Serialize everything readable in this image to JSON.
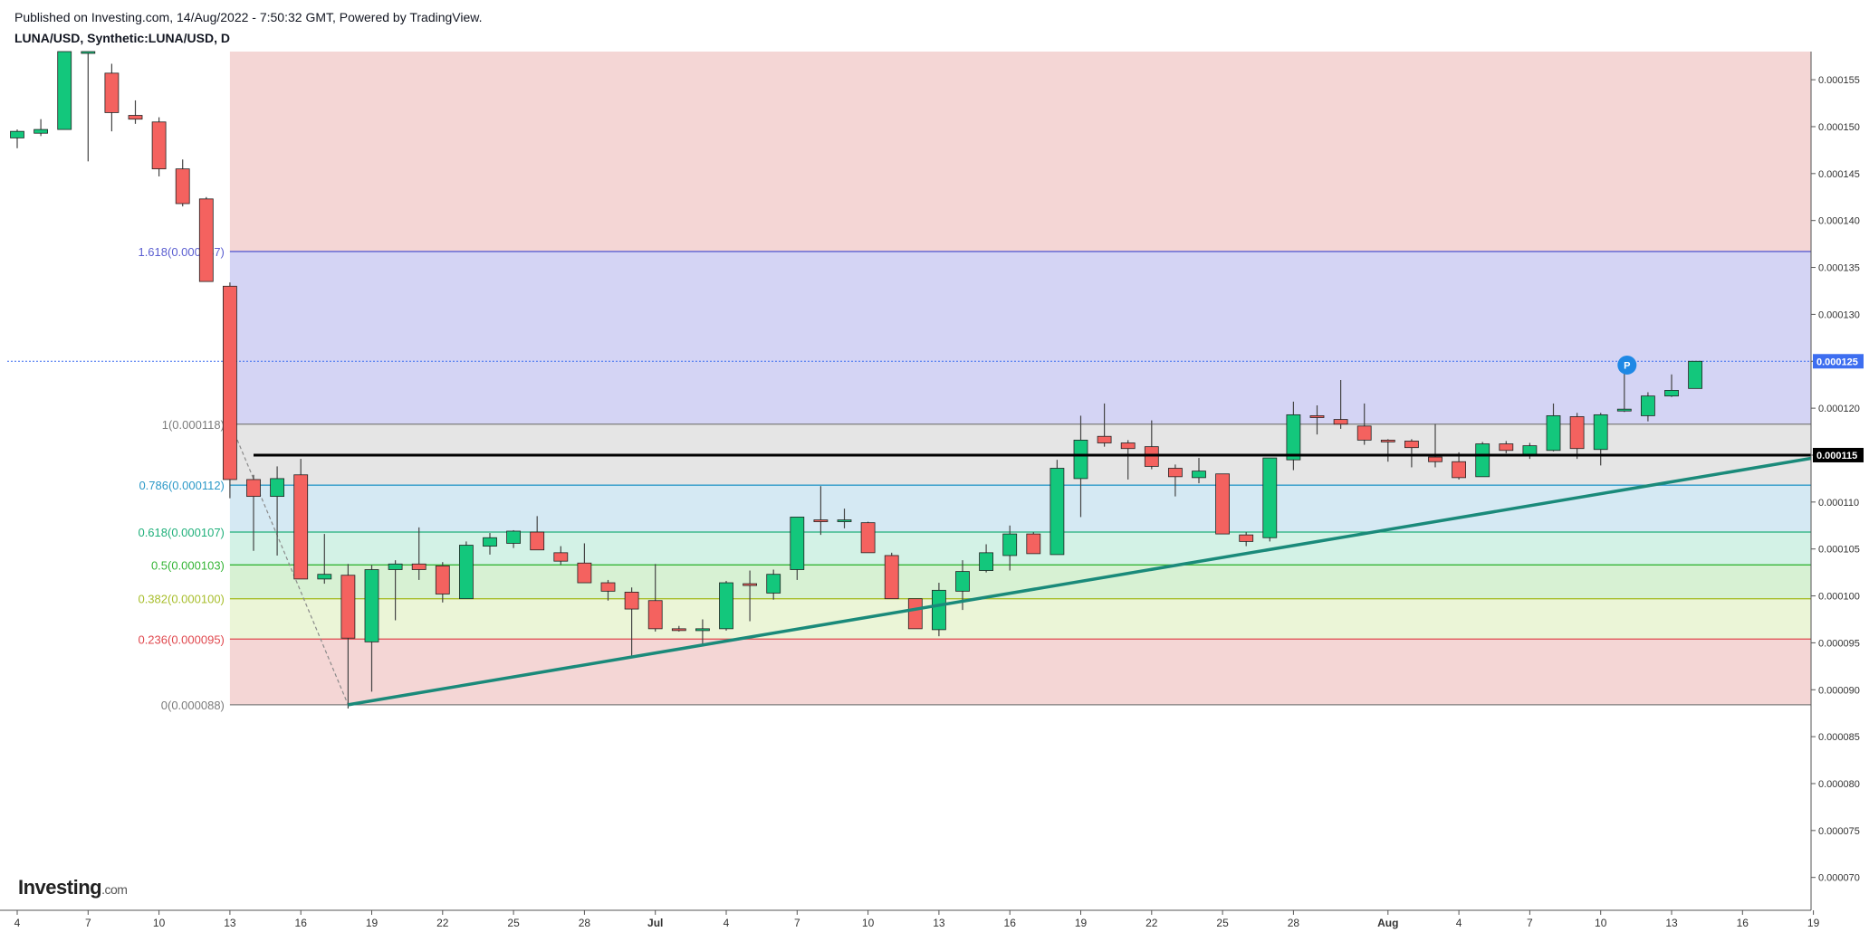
{
  "header": {
    "published": "Published on Investing.com, 14/Aug/2022 - 7:50:32 GMT, Powered by TradingView.",
    "symbol": "LUNA/USD, Synthetic:LUNA/USD, D"
  },
  "brand": {
    "name": "Investing",
    "domain": ".com"
  },
  "chart_data": {
    "type": "candlestick",
    "interval": "D",
    "ylim": [
      6.65e-05,
      0.000158
    ],
    "y_ticks": [
      "0.000155",
      "0.000150",
      "0.000145",
      "0.000140",
      "0.000135",
      "0.000130",
      "0.000125",
      "0.000120",
      "0.000115",
      "0.000110",
      "0.000105",
      "0.000100",
      "0.000095",
      "0.000090",
      "0.000085",
      "0.000080",
      "0.000075",
      "0.000070"
    ],
    "x_ticks": [
      {
        "label": "4",
        "index": 0
      },
      {
        "label": "7",
        "index": 3
      },
      {
        "label": "10",
        "index": 6
      },
      {
        "label": "13",
        "index": 9
      },
      {
        "label": "16",
        "index": 12
      },
      {
        "label": "19",
        "index": 15
      },
      {
        "label": "22",
        "index": 18
      },
      {
        "label": "25",
        "index": 21
      },
      {
        "label": "28",
        "index": 24
      },
      {
        "label": "Jul",
        "index": 27
      },
      {
        "label": "4",
        "index": 30
      },
      {
        "label": "7",
        "index": 33
      },
      {
        "label": "10",
        "index": 36
      },
      {
        "label": "13",
        "index": 39
      },
      {
        "label": "16",
        "index": 42
      },
      {
        "label": "19",
        "index": 45
      },
      {
        "label": "22",
        "index": 48
      },
      {
        "label": "25",
        "index": 51
      },
      {
        "label": "28",
        "index": 54
      },
      {
        "label": "Aug",
        "index": 58
      },
      {
        "label": "4",
        "index": 61
      },
      {
        "label": "7",
        "index": 64
      },
      {
        "label": "10",
        "index": 67
      },
      {
        "label": "13",
        "index": 70
      },
      {
        "label": "16",
        "index": 73
      },
      {
        "label": "19",
        "index": 76
      }
    ],
    "candles": [
      [
        0.0001488,
        0.0001495,
        0.0001477,
        0.0001497
      ],
      [
        0.0001493,
        0.0001497,
        0.000149,
        0.0001508
      ],
      [
        0.0001497,
        0.000158,
        0.0001497,
        0.000158
      ],
      [
        0.000158,
        0.000158,
        0.0001463,
        0.000158
      ],
      [
        0.0001557,
        0.0001515,
        0.0001495,
        0.0001567
      ],
      [
        0.0001512,
        0.0001508,
        0.0001503,
        0.0001528
      ],
      [
        0.0001505,
        0.0001455,
        0.0001447,
        0.000151
      ],
      [
        0.0001455,
        0.0001418,
        0.0001415,
        0.0001465
      ],
      [
        0.0001423,
        0.0001335,
        0.0001335,
        0.0001425
      ],
      [
        0.000133,
        0.0001124,
        0.0001104,
        0.0001334
      ],
      [
        0.0001124,
        0.0001106,
        0.0001048,
        0.0001129
      ],
      [
        0.0001106,
        0.0001125,
        0.0001043,
        0.0001138
      ],
      [
        0.0001129,
        0.0001018,
        0.0001018,
        0.0001146
      ],
      [
        0.0001018,
        0.0001023,
        0.0001013,
        0.0001066
      ],
      [
        0.0001022,
        9.55e-05,
        8.8e-05,
        0.0001034
      ],
      [
        9.51e-05,
        0.0001028,
        8.98e-05,
        0.0001033
      ],
      [
        0.0001028,
        0.0001034,
        9.74e-05,
        0.0001038
      ],
      [
        0.0001034,
        0.0001028,
        0.0001017,
        0.0001073
      ],
      [
        0.0001032,
        0.0001002,
        9.93e-05,
        0.0001036
      ],
      [
        9.97e-05,
        0.0001054,
        9.97e-05,
        0.0001058
      ],
      [
        0.0001053,
        0.0001062,
        0.0001044,
        0.0001067
      ],
      [
        0.0001056,
        0.0001069,
        0.0001051,
        0.000107
      ],
      [
        0.0001068,
        0.0001049,
        0.0001049,
        0.0001085
      ],
      [
        0.0001046,
        0.0001037,
        0.0001033,
        0.0001053
      ],
      [
        0.0001035,
        0.0001014,
        0.0001014,
        0.0001056
      ],
      [
        0.0001014,
        0.0001005,
        9.95e-05,
        0.0001017
      ],
      [
        0.0001004,
        9.86e-05,
        9.35e-05,
        0.0001009
      ],
      [
        9.95e-05,
        9.65e-05,
        9.62e-05,
        0.0001034
      ],
      [
        9.65e-05,
        9.64e-05,
        9.62e-05,
        9.68e-05
      ],
      [
        9.63e-05,
        9.65e-05,
        9.48e-05,
        9.75e-05
      ],
      [
        9.65e-05,
        0.0001014,
        9.63e-05,
        0.0001016
      ],
      [
        0.0001013,
        0.0001012,
        9.73e-05,
        0.0001027
      ],
      [
        0.0001003,
        0.0001023,
        9.96e-05,
        0.0001028
      ],
      [
        0.0001028,
        0.0001084,
        0.0001017,
        0.0001084
      ],
      [
        0.0001081,
        0.000108,
        0.0001065,
        0.0001117
      ],
      [
        0.000108,
        0.0001081,
        0.0001072,
        0.0001093
      ],
      [
        0.0001078,
        0.0001046,
        0.0001046,
        0.0001079
      ],
      [
        0.0001043,
        9.97e-05,
        9.97e-05,
        0.0001046
      ],
      [
        9.97e-05,
        9.65e-05,
        9.65e-05,
        9.97e-05
      ],
      [
        9.64e-05,
        0.0001006,
        9.57e-05,
        0.0001014
      ],
      [
        0.0001005,
        0.0001026,
        9.85e-05,
        0.0001038
      ],
      [
        0.0001027,
        0.0001046,
        0.0001025,
        0.0001055
      ],
      [
        0.0001043,
        0.0001066,
        0.0001027,
        0.0001075
      ],
      [
        0.0001066,
        0.0001045,
        0.0001045,
        0.0001068
      ],
      [
        0.0001044,
        0.0001136,
        0.0001044,
        0.0001145
      ],
      [
        0.0001125,
        0.0001166,
        0.0001084,
        0.0001192
      ],
      [
        0.000117,
        0.0001163,
        0.0001159,
        0.0001205
      ],
      [
        0.0001163,
        0.0001157,
        0.0001124,
        0.0001166
      ],
      [
        0.0001159,
        0.0001138,
        0.0001135,
        0.0001187
      ],
      [
        0.0001136,
        0.0001127,
        0.0001106,
        0.000114
      ],
      [
        0.0001126,
        0.0001133,
        0.000112,
        0.0001147
      ],
      [
        0.000113,
        0.0001066,
        0.0001066,
        0.000113
      ],
      [
        0.0001065,
        0.0001058,
        0.0001053,
        0.0001068
      ],
      [
        0.0001062,
        0.0001147,
        0.0001058,
        0.0001147
      ],
      [
        0.0001145,
        0.0001193,
        0.0001134,
        0.0001207
      ],
      [
        0.0001192,
        0.000119,
        0.0001172,
        0.0001203
      ],
      [
        0.0001188,
        0.0001183,
        0.0001178,
        0.000123
      ],
      [
        0.0001181,
        0.0001166,
        0.0001161,
        0.0001205
      ],
      [
        0.0001166,
        0.0001165,
        0.0001143,
        0.0001167
      ],
      [
        0.0001165,
        0.0001158,
        0.0001137,
        0.0001167
      ],
      [
        0.0001148,
        0.0001143,
        0.0001137,
        0.0001183
      ],
      [
        0.0001143,
        0.0001126,
        0.0001124,
        0.0001153
      ],
      [
        0.0001127,
        0.0001162,
        0.0001127,
        0.0001164
      ],
      [
        0.0001162,
        0.0001155,
        0.0001152,
        0.0001165
      ],
      [
        0.000115,
        0.000116,
        0.0001146,
        0.0001163
      ],
      [
        0.0001155,
        0.0001192,
        0.0001154,
        0.0001205
      ],
      [
        0.0001191,
        0.0001157,
        0.0001146,
        0.0001195
      ],
      [
        0.0001156,
        0.0001193,
        0.0001139,
        0.0001195
      ],
      [
        0.0001197,
        0.0001199,
        0.0001196,
        0.0001241
      ],
      [
        0.0001192,
        0.0001213,
        0.0001186,
        0.0001217
      ],
      [
        0.0001213,
        0.0001219,
        0.0001212,
        0.0001236
      ],
      [
        0.0001221,
        0.000125,
        0.0001221,
        0.000125
      ]
    ],
    "fib": {
      "levels": [
        {
          "ratio": "1.618",
          "price": 0.0001367,
          "label": "1.618(0.000137)",
          "color": "#5b5fd1"
        },
        {
          "ratio": "1",
          "price": 0.0001183,
          "label": "1(0.000118)",
          "color": "#7c7c7c"
        },
        {
          "ratio": "0.786",
          "price": 0.0001118,
          "label": "0.786(0.000112)",
          "color": "#2c99c8"
        },
        {
          "ratio": "0.618",
          "price": 0.0001068,
          "label": "0.618(0.000107)",
          "color": "#20b07b"
        },
        {
          "ratio": "0.5",
          "price": 0.0001033,
          "label": "0.5(0.000103)",
          "color": "#35b536"
        },
        {
          "ratio": "0.382",
          "price": 9.97e-05,
          "label": "0.382(0.000100)",
          "color": "#a8be2c"
        },
        {
          "ratio": "0.236",
          "price": 9.54e-05,
          "label": "0.236(0.000095)",
          "color": "#e0484e"
        },
        {
          "ratio": "0",
          "price": 8.84e-05,
          "label": "0(0.000088)",
          "color": "#7c7c7c"
        }
      ],
      "zones": [
        {
          "from": 0.0001367,
          "to": 0.000158,
          "color": "#f4d6d5"
        },
        {
          "from": 0.0001183,
          "to": 0.0001367,
          "color": "#d4d4f4"
        },
        {
          "from": 0.0001118,
          "to": 0.0001183,
          "color": "#e5e5e5"
        },
        {
          "from": 0.0001068,
          "to": 0.0001118,
          "color": "#d5e9f3"
        },
        {
          "from": 0.0001033,
          "to": 0.0001068,
          "color": "#d3f2e6"
        },
        {
          "from": 9.97e-05,
          "to": 0.0001033,
          "color": "#d7f1d3"
        },
        {
          "from": 9.54e-05,
          "to": 9.97e-05,
          "color": "#ebf5d7"
        },
        {
          "from": 8.84e-05,
          "to": 9.54e-05,
          "color": "#f4d6d5"
        }
      ],
      "anchor_high": {
        "index": 9,
        "price": 0.0001367
      },
      "anchor_low": {
        "index": 14,
        "price": 8.84e-05
      }
    },
    "horizontal_line": {
      "price": 0.000115,
      "label": "0.000115",
      "from_index": 10
    },
    "trendline": {
      "x1": 14,
      "y1": 8.84e-05,
      "x2": 76,
      "y2": 0.0001147
    },
    "last_price": {
      "price": 0.000125,
      "label": "0.000125",
      "color": "#3d6ef0"
    },
    "marker": {
      "text": "P",
      "index": 68,
      "price": 0.0001245,
      "color": "#1e88e5"
    },
    "colors": {
      "up": "#13c77c",
      "down": "#f4625f",
      "wick": "#444444"
    }
  }
}
